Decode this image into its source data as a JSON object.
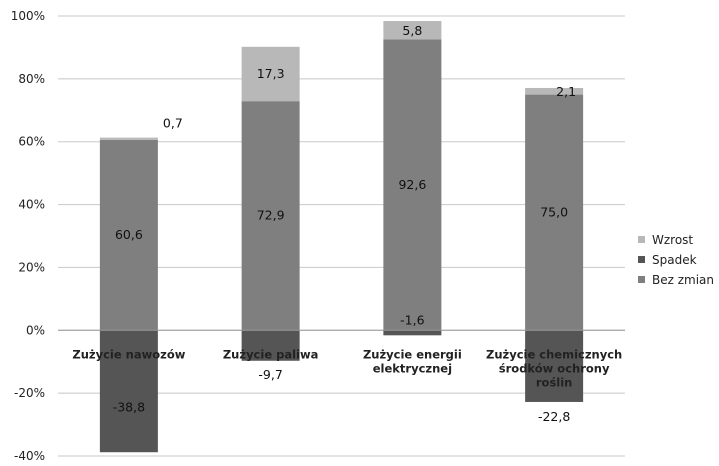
{
  "chart_data": {
    "type": "bar",
    "stacked": true,
    "categories": [
      [
        "Zużycie nawozów"
      ],
      [
        "Zużycie paliwa"
      ],
      [
        "Zużycie energii",
        "elektrycznej"
      ],
      [
        "Zużycie chemicznych",
        "środków ochrony",
        "roślin"
      ]
    ],
    "series": [
      {
        "name": "Wzrost",
        "color": "#b8b8b8",
        "values": [
          0.7,
          17.3,
          5.8,
          2.1
        ]
      },
      {
        "name": "Spadek",
        "color": "#555555",
        "values": [
          -38.8,
          -9.7,
          -1.6,
          -22.8
        ]
      },
      {
        "name": "Bez zmian",
        "color": "#7f7f7f",
        "values": [
          60.6,
          72.9,
          92.6,
          75.0
        ]
      }
    ],
    "data_labels": {
      "Wzrost": [
        "0,7",
        "17,3",
        "5,8",
        "2,1"
      ],
      "Spadek": [
        "-38,8",
        "-9,7",
        "-1,6",
        "-22,8"
      ],
      "Bez zmian": [
        "60,6",
        "72,9",
        "92,6",
        "75,0"
      ]
    },
    "yticks": [
      "100%",
      "80%",
      "60%",
      "40%",
      "20%",
      "0%",
      "-20%",
      "-40%"
    ],
    "ylim": [
      -40,
      100
    ],
    "grid": true,
    "legend_position": "right",
    "title": "",
    "xlabel": "",
    "ylabel": ""
  }
}
